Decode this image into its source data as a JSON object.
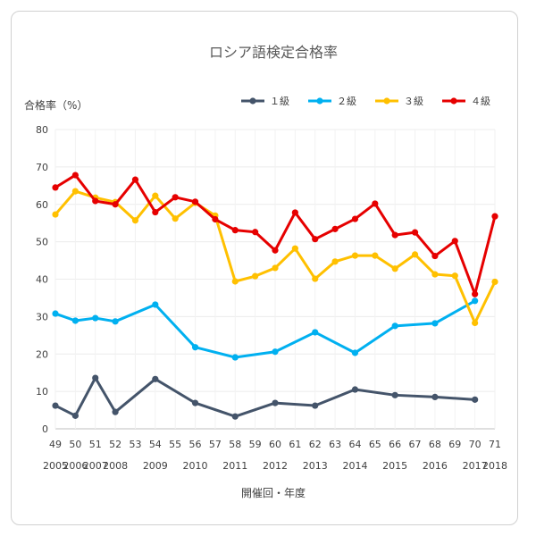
{
  "chart_data": {
    "type": "line",
    "title": "ロシア語検定合格率",
    "ylabel": "合格率（%）",
    "xlabel": "開催回・年度",
    "ylim": [
      0,
      80
    ],
    "yticks": [
      0,
      10,
      20,
      30,
      40,
      50,
      60,
      70,
      80
    ],
    "grid": true,
    "legend_position": "top",
    "categories": [
      "49",
      "50",
      "51",
      "52",
      "53",
      "54",
      "55",
      "56",
      "57",
      "58",
      "59",
      "60",
      "61",
      "62",
      "63",
      "64",
      "65",
      "66",
      "67",
      "68",
      "69",
      "70",
      "71"
    ],
    "year_labels": [
      {
        "label": "2005",
        "index": 0
      },
      {
        "label": "2006",
        "index": 1
      },
      {
        "label": "2007",
        "index": 2
      },
      {
        "label": "2008",
        "index": 3
      },
      {
        "label": "2009",
        "index": 5
      },
      {
        "label": "2010",
        "index": 7
      },
      {
        "label": "2011",
        "index": 9
      },
      {
        "label": "2012",
        "index": 11
      },
      {
        "label": "2013",
        "index": 13
      },
      {
        "label": "2014",
        "index": 15
      },
      {
        "label": "2015",
        "index": 17
      },
      {
        "label": "2016",
        "index": 19
      },
      {
        "label": "2017",
        "index": 21
      },
      {
        "label": "2018",
        "index": 22
      }
    ],
    "series": [
      {
        "name": "１級",
        "color": "#44546a",
        "values": [
          6.2,
          3.5,
          13.6,
          4.5,
          null,
          13.3,
          null,
          6.9,
          null,
          3.3,
          null,
          6.9,
          null,
          6.2,
          null,
          10.5,
          null,
          9.0,
          null,
          8.5,
          null,
          7.8,
          null
        ]
      },
      {
        "name": "２級",
        "color": "#00b0f0",
        "values": [
          30.8,
          28.9,
          29.6,
          28.7,
          null,
          33.2,
          null,
          21.8,
          null,
          19.1,
          null,
          20.6,
          null,
          25.8,
          null,
          20.3,
          null,
          27.5,
          null,
          28.2,
          null,
          34.2,
          null
        ]
      },
      {
        "name": "３級",
        "color": "#ffc000",
        "values": [
          57.3,
          63.5,
          61.8,
          60.6,
          55.7,
          62.3,
          56.2,
          60.4,
          57.0,
          39.4,
          40.8,
          43.0,
          48.2,
          40.1,
          44.7,
          46.3,
          46.3,
          42.8,
          46.6,
          41.3,
          40.9,
          28.3,
          39.3
        ]
      },
      {
        "name": "４級",
        "color": "#e60000",
        "values": [
          64.5,
          67.8,
          60.9,
          60.0,
          66.6,
          57.9,
          61.9,
          60.7,
          56.0,
          53.1,
          52.6,
          47.7,
          57.8,
          50.7,
          53.4,
          56.1,
          60.2,
          51.8,
          52.5,
          46.2,
          50.2,
          36.0,
          56.8
        ]
      }
    ]
  }
}
